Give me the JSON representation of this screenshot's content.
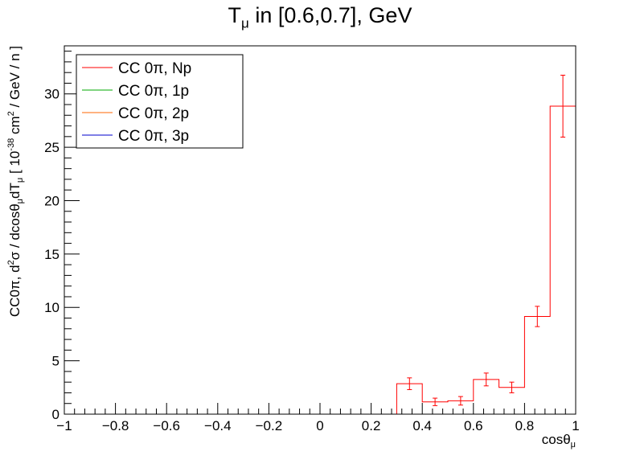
{
  "chart_data": {
    "type": "histogram",
    "title": "T",
    "title_sub": "μ",
    "title_rest": " in [0.6,0.7], GeV",
    "xlabel": "cosθ",
    "xlabel_sub": "μ",
    "ylabel_parts": {
      "p1": "CC0π, d",
      "p1_sup": "2",
      "p2": "σ / dcosθ",
      "p2_sub": "μ",
      "p3": "dT",
      "p3_sub": "μ",
      "p4": " [ 10",
      "p4_sup": "-38",
      "p5": " cm",
      "p5_sup": "2",
      "p6": " / GeV / n ]"
    },
    "xlim": [
      -1,
      1
    ],
    "ylim": [
      0,
      34.5
    ],
    "xticks": [
      -1,
      -0.8,
      -0.6,
      -0.4,
      -0.2,
      0,
      0.2,
      0.4,
      0.6,
      0.8,
      1
    ],
    "xtick_labels": [
      "−1",
      "−0.8",
      "−0.6",
      "−0.4",
      "−0.2",
      "0",
      "0.2",
      "0.4",
      "0.6",
      "0.8",
      "1"
    ],
    "yticks": [
      0,
      5,
      10,
      15,
      20,
      25,
      30
    ],
    "ytick_labels": [
      "0",
      "5",
      "10",
      "15",
      "20",
      "25",
      "30"
    ],
    "bin_edges": [
      -1,
      -0.9,
      -0.8,
      -0.7,
      -0.6,
      -0.5,
      -0.4,
      -0.3,
      -0.2,
      -0.1,
      0,
      0.1,
      0.2,
      0.3,
      0.4,
      0.5,
      0.6,
      0.7,
      0.8,
      0.9,
      1
    ],
    "grid": false,
    "legend_position": "top-left",
    "series": [
      {
        "name": "CC 0π, Np",
        "color": "#ff0000",
        "values": [
          0,
          0,
          0,
          0,
          0,
          0,
          0,
          0,
          0,
          0,
          0,
          0,
          0,
          2.85,
          1.15,
          1.25,
          3.25,
          2.5,
          9.15,
          28.85
        ],
        "errors": [
          0,
          0,
          0,
          0,
          0,
          0,
          0,
          0,
          0,
          0,
          0,
          0,
          0,
          0.55,
          0.35,
          0.4,
          0.6,
          0.5,
          0.95,
          2.9
        ]
      },
      {
        "name": "CC 0π, 1p",
        "color": "#00aa00",
        "values": [
          0,
          0,
          0,
          0,
          0,
          0,
          0,
          0,
          0,
          0,
          0,
          0,
          0,
          0,
          0,
          0,
          0,
          0,
          0,
          0
        ]
      },
      {
        "name": "CC 0π, 2p",
        "color": "#ff6600",
        "values": [
          0,
          0,
          0,
          0,
          0,
          0,
          0,
          0,
          0,
          0,
          0,
          0,
          0,
          0,
          0,
          0,
          0,
          0,
          0,
          0
        ]
      },
      {
        "name": "CC 0π, 3p",
        "color": "#0000cc",
        "values": [
          0,
          0,
          0,
          0,
          0,
          0,
          0,
          0,
          0,
          0,
          0,
          0,
          0,
          0,
          0,
          0,
          0,
          0,
          0,
          0
        ]
      }
    ]
  }
}
